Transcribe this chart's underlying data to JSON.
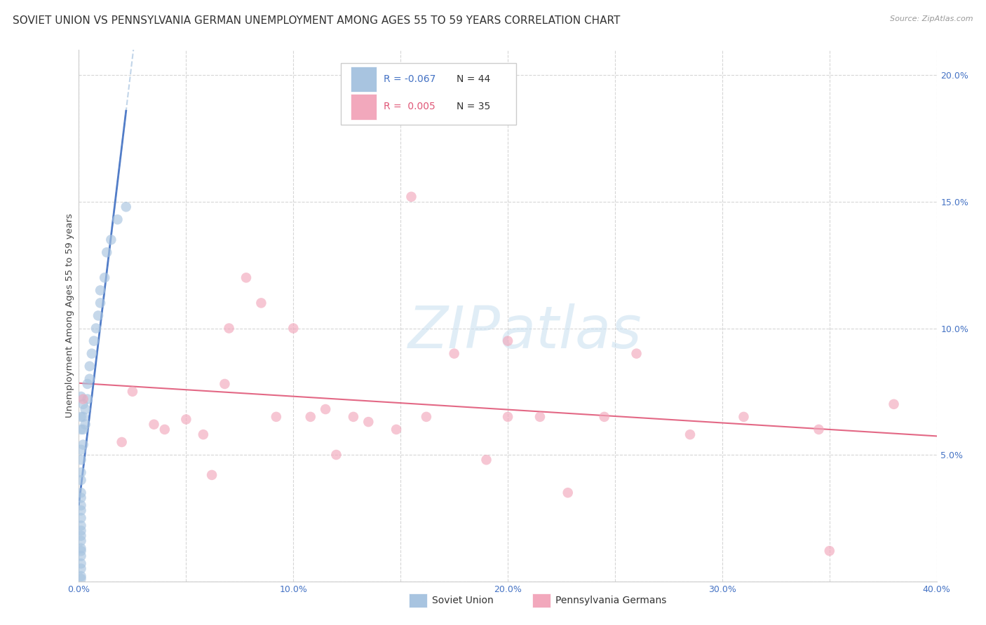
{
  "title": "SOVIET UNION VS PENNSYLVANIA GERMAN UNEMPLOYMENT AMONG AGES 55 TO 59 YEARS CORRELATION CHART",
  "source": "Source: ZipAtlas.com",
  "ylabel": "Unemployment Among Ages 55 to 59 years",
  "xlim": [
    0.0,
    0.4
  ],
  "ylim": [
    0.0,
    0.21
  ],
  "xticks": [
    0.0,
    0.05,
    0.1,
    0.15,
    0.2,
    0.25,
    0.3,
    0.35,
    0.4
  ],
  "yticks": [
    0.0,
    0.05,
    0.1,
    0.15,
    0.2
  ],
  "ytick_labels": [
    "",
    "5.0%",
    "10.0%",
    "15.0%",
    "20.0%"
  ],
  "xtick_labels": [
    "0.0%",
    "",
    "10.0%",
    "",
    "20.0%",
    "",
    "30.0%",
    "",
    "40.0%"
  ],
  "background_color": "#ffffff",
  "grid_color": "#cccccc",
  "blue_color": "#a8c4e0",
  "pink_color": "#f2a8bc",
  "blue_line_color": "#4472c4",
  "blue_dash_color": "#a8c4e0",
  "pink_line_color": "#e05878",
  "legend_blue_R": "-0.067",
  "legend_blue_N": "44",
  "legend_pink_R": "0.005",
  "legend_pink_N": "35",
  "soviet_x": [
    0.001,
    0.001,
    0.001,
    0.001,
    0.001,
    0.001,
    0.001,
    0.001,
    0.001,
    0.001,
    0.001,
    0.001,
    0.001,
    0.001,
    0.001,
    0.001,
    0.001,
    0.001,
    0.001,
    0.001,
    0.001,
    0.001,
    0.001,
    0.002,
    0.002,
    0.002,
    0.002,
    0.003,
    0.003,
    0.004,
    0.004,
    0.005,
    0.005,
    0.006,
    0.007,
    0.008,
    0.009,
    0.01,
    0.01,
    0.012,
    0.013,
    0.015,
    0.018,
    0.022
  ],
  "soviet_y": [
    0.001,
    0.002,
    0.005,
    0.007,
    0.01,
    0.012,
    0.013,
    0.016,
    0.018,
    0.02,
    0.022,
    0.025,
    0.028,
    0.03,
    0.033,
    0.035,
    0.04,
    0.043,
    0.048,
    0.052,
    0.06,
    0.065,
    0.073,
    0.054,
    0.06,
    0.065,
    0.07,
    0.062,
    0.068,
    0.072,
    0.078,
    0.08,
    0.085,
    0.09,
    0.095,
    0.1,
    0.105,
    0.11,
    0.115,
    0.12,
    0.13,
    0.135,
    0.143,
    0.148
  ],
  "pa_german_x": [
    0.002,
    0.02,
    0.025,
    0.035,
    0.04,
    0.05,
    0.058,
    0.062,
    0.068,
    0.07,
    0.078,
    0.085,
    0.092,
    0.1,
    0.108,
    0.115,
    0.12,
    0.128,
    0.135,
    0.148,
    0.155,
    0.162,
    0.175,
    0.19,
    0.2,
    0.215,
    0.228,
    0.245,
    0.26,
    0.285,
    0.31,
    0.345,
    0.38,
    0.35,
    0.2
  ],
  "pa_german_y": [
    0.072,
    0.055,
    0.075,
    0.062,
    0.06,
    0.064,
    0.058,
    0.042,
    0.078,
    0.1,
    0.12,
    0.11,
    0.065,
    0.1,
    0.065,
    0.068,
    0.05,
    0.065,
    0.063,
    0.06,
    0.152,
    0.065,
    0.09,
    0.048,
    0.065,
    0.065,
    0.035,
    0.065,
    0.09,
    0.058,
    0.065,
    0.06,
    0.07,
    0.012,
    0.095
  ],
  "marker_size": 110,
  "marker_alpha": 0.65,
  "title_fontsize": 11,
  "label_fontsize": 9.5,
  "tick_fontsize": 9,
  "tick_color": "#4472c4",
  "watermark_text": "ZIPatlas",
  "watermark_color": "#c8dff0",
  "watermark_fontsize": 60,
  "legend_label_blue": "Soviet Union",
  "legend_label_pink": "Pennsylvania Germans"
}
